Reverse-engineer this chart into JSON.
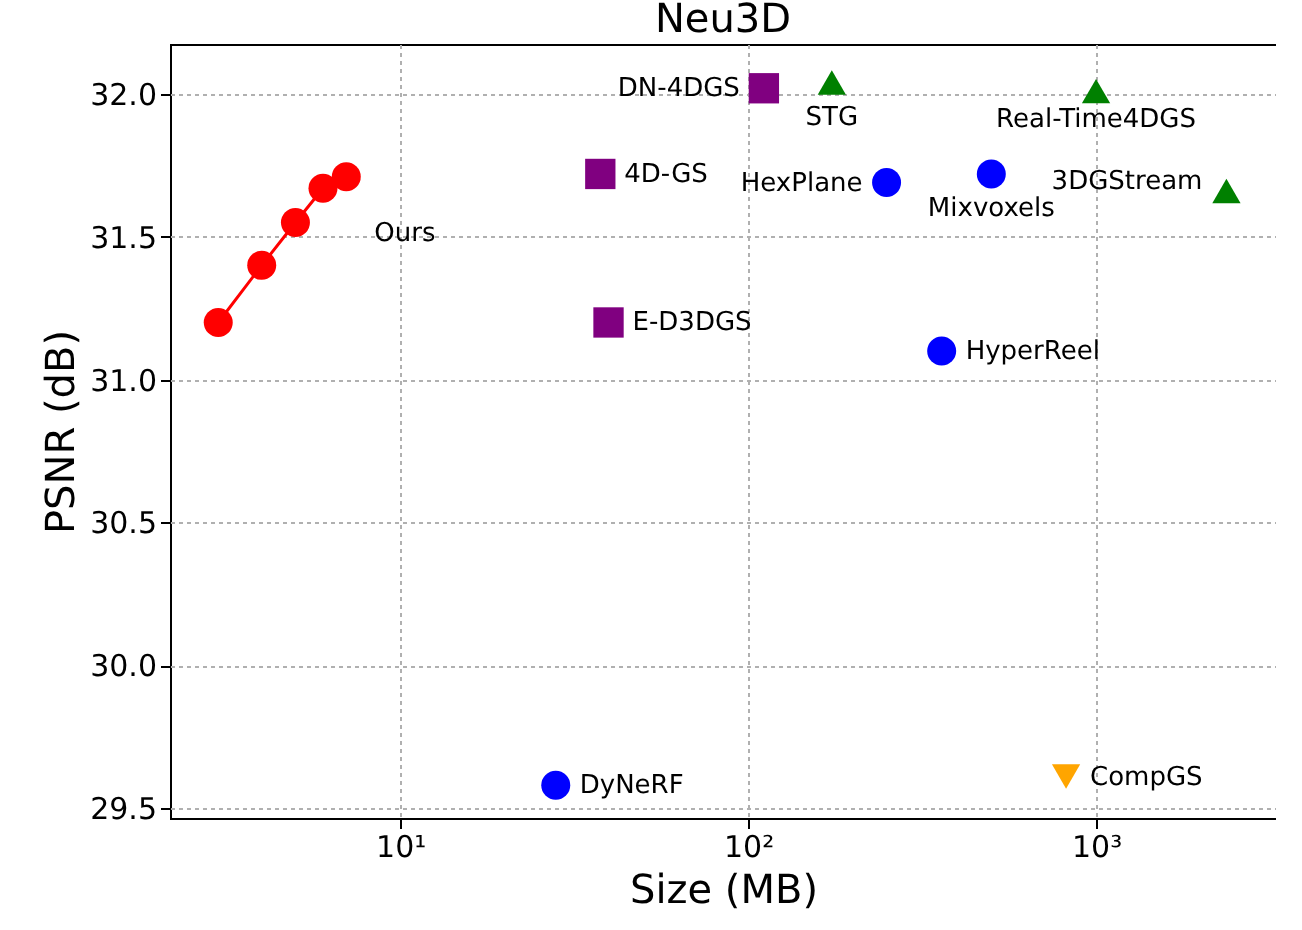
{
  "chart_data": {
    "type": "scatter",
    "title": "Neu3D",
    "xlabel": "Size (MB)",
    "ylabel": "PSNR (dB)",
    "log": "x",
    "grid": true,
    "xlim": [
      2.18,
      3290
    ],
    "xticks": [
      {
        "value": 10,
        "label": "10¹"
      },
      {
        "value": 100,
        "label": "10²"
      },
      {
        "value": 1000,
        "label": "10³"
      }
    ],
    "ylim": [
      29.465,
      32.175
    ],
    "yticks": [
      29.5,
      {
        "value": 30,
        "label": "30.0"
      },
      30.5,
      {
        "value": 31,
        "label": "31.0"
      },
      31.5,
      {
        "value": 32,
        "label": "32.0"
      }
    ],
    "series": [
      {
        "name": "Ours",
        "type": "line",
        "marker": "circle",
        "color": "#ff0000",
        "x": [
          3,
          4,
          5,
          6,
          7
        ],
        "values": [
          31.2,
          31.4,
          31.55,
          31.67,
          31.71
        ]
      },
      {
        "name": "DN-4DGS",
        "marker": "square",
        "color": "#800080",
        "x": [
          111
        ],
        "values": [
          32.02
        ]
      },
      {
        "name": "STG",
        "marker": "triangle",
        "color": "#008000",
        "x": [
          174
        ],
        "values": [
          32.04
        ]
      },
      {
        "name": "Real-Time4DGS",
        "marker": "triangle",
        "color": "#008000",
        "x": [
          1000
        ],
        "values": [
          32.01
        ]
      },
      {
        "name": "4D-GS",
        "marker": "square",
        "color": "#800080",
        "x": [
          37.6
        ],
        "values": [
          31.72
        ]
      },
      {
        "name": "HexPlane",
        "marker": "circle",
        "color": "#0000ff",
        "x": [
          250
        ],
        "values": [
          31.69
        ]
      },
      {
        "name": "Mixvoxels",
        "marker": "circle",
        "color": "#0000ff",
        "x": [
          500
        ],
        "values": [
          31.72
        ]
      },
      {
        "name": "3DGStream",
        "marker": "triangle",
        "color": "#008000",
        "x": [
          2370
        ],
        "values": [
          31.66
        ]
      },
      {
        "name": "E-D3DGS",
        "marker": "square",
        "color": "#800080",
        "x": [
          39.7
        ],
        "values": [
          31.2
        ]
      },
      {
        "name": "HyperReel",
        "marker": "circle",
        "color": "#0000ff",
        "x": [
          360
        ],
        "values": [
          31.1
        ]
      },
      {
        "name": "DyNeRF",
        "marker": "circle",
        "color": "#0000ff",
        "x": [
          28
        ],
        "values": [
          29.58
        ]
      },
      {
        "name": "CompGS",
        "marker": "triangle-down",
        "color": "#ffa500",
        "x": [
          820
        ],
        "values": [
          29.61
        ]
      }
    ]
  }
}
